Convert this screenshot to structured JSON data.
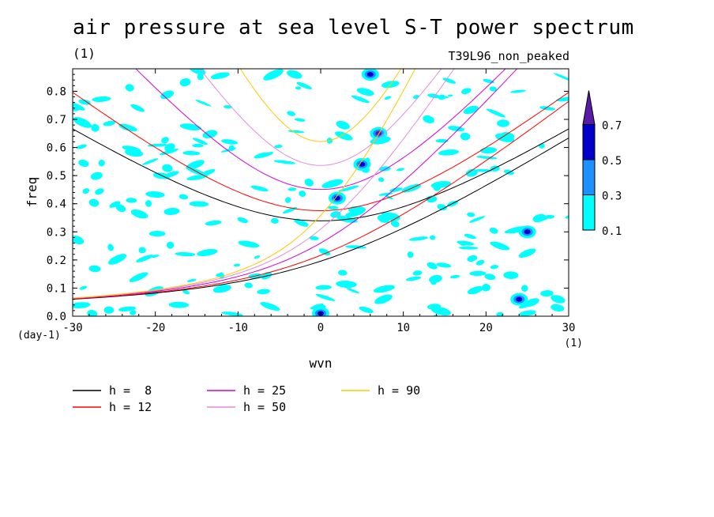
{
  "title": "air pressure at sea level S-T power spectrum",
  "units_label": "(1)",
  "run_label": "T39L96_non_peaked",
  "chart_data": {
    "type": "heatmap",
    "title": "air pressure at sea level S-T power spectrum",
    "xlabel": "wvn",
    "ylabel": "freq",
    "x_unit_label": "(1)",
    "y_unit_label": "(day-1)",
    "xlim": [
      -30,
      30
    ],
    "ylim": [
      0,
      0.88
    ],
    "x_ticks": [
      -30,
      -20,
      -10,
      0,
      10,
      20,
      30
    ],
    "x_tick_labels": [
      "-30",
      "-20",
      "-10",
      "0",
      "10",
      "20",
      "30"
    ],
    "y_ticks": [
      0,
      0.1,
      0.2,
      0.3,
      0.4,
      0.5,
      0.6,
      0.7,
      0.8
    ],
    "y_tick_labels": [
      "0.0",
      "0.1",
      "0.2",
      "0.3",
      "0.4",
      "0.5",
      "0.6",
      "0.7",
      "0.8"
    ],
    "colorbar": {
      "levels": [
        0.1,
        0.3,
        0.5,
        0.7
      ],
      "level_labels": [
        "0.1",
        "0.3",
        "0.5",
        "0.7"
      ],
      "colors": [
        "#00ffff",
        "#1e90ff",
        "#0000cd",
        "#5a1aa8"
      ],
      "extend": "max"
    },
    "dispersion_curves": [
      {
        "label": "h =  8",
        "h": 8,
        "color": "#000000"
      },
      {
        "label": "h = 12",
        "h": 12,
        "color": "#ff0000"
      },
      {
        "label": "h = 25",
        "h": 25,
        "color": "#d400d4"
      },
      {
        "label": "h = 50",
        "h": 50,
        "color": "#e08ce0"
      },
      {
        "label": "h = 90",
        "h": 90,
        "color": "#ffc800"
      }
    ],
    "features": [
      {
        "wvn": 2,
        "freq": 0.42,
        "level": 0.5
      },
      {
        "wvn": 5,
        "freq": 0.54,
        "level": 0.5
      },
      {
        "wvn": 7,
        "freq": 0.65,
        "level": 0.7
      },
      {
        "wvn": 6,
        "freq": 0.86,
        "level": 0.5
      },
      {
        "wvn": 0,
        "freq": 0.01,
        "level": 0.5
      },
      {
        "wvn": 24,
        "freq": 0.06,
        "level": 0.5
      },
      {
        "wvn": 25,
        "freq": 0.3,
        "level": 0.5
      }
    ]
  }
}
